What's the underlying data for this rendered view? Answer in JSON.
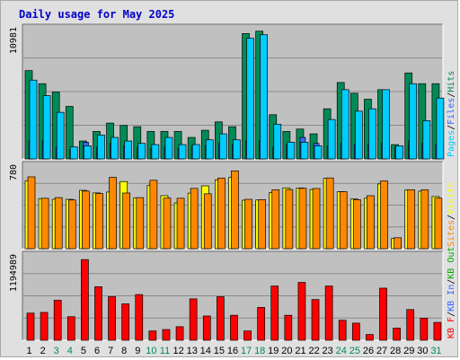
{
  "chart_data": {
    "type": "bar",
    "title": "Daily usage for May 2025",
    "days": [
      "1",
      "2",
      "3",
      "4",
      "5",
      "6",
      "7",
      "8",
      "9",
      "10",
      "11",
      "12",
      "13",
      "14",
      "15",
      "16",
      "17",
      "18",
      "19",
      "20",
      "21",
      "22",
      "23",
      "24",
      "25",
      "26",
      "27",
      "28",
      "29",
      "30",
      "31"
    ],
    "weekend_days": [
      "3",
      "4",
      "10",
      "11",
      "17",
      "18",
      "24",
      "25",
      "31"
    ],
    "panels": [
      {
        "id": "hits",
        "ymax_label": "10981",
        "ymax": 10981,
        "legend": [
          {
            "name": "Pages",
            "color": "#00ccff"
          },
          {
            "name": "Files",
            "color": "#3366ff"
          },
          {
            "name": "Hits",
            "color": "#008b56"
          }
        ],
        "series": [
          {
            "name": "Hits",
            "values": [
              7400,
              6300,
              5600,
              4400,
              1500,
              2300,
              3000,
              2800,
              2700,
              2300,
              2300,
              2300,
              1800,
              2400,
              3100,
              2700,
              10500,
              10700,
              3700,
              2300,
              2500,
              2100,
              4200,
              6400,
              5500,
              5000,
              5800,
              1200,
              7200,
              6300,
              6300
            ]
          },
          {
            "name": "Files",
            "values": [
              1500,
              1500,
              1000,
              800,
              1400,
              1000,
              1300,
              1100,
              1000,
              900,
              1000,
              900,
              1100,
              1100,
              1300,
              1200,
              1500,
              1500,
              1000,
              1200,
              1800,
              1300,
              1100,
              1300,
              1200,
              1200,
              1300,
              1000,
              1500,
              1300,
              1200
            ]
          },
          {
            "name": "Pages",
            "values": [
              6600,
              5300,
              3900,
              1000,
              1100,
              2000,
              1800,
              1500,
              1300,
              1200,
              1800,
              1200,
              1200,
              1600,
              2100,
              1600,
              10100,
              10400,
              2900,
              1400,
              1400,
              1100,
              3300,
              5800,
              4000,
              4200,
              5800,
              1100,
              6300,
              3200,
              5100
            ]
          }
        ]
      },
      {
        "id": "visits",
        "ymax_label": "780",
        "ymax": 780,
        "legend": [
          {
            "name": "Sites",
            "color": "#ff8800"
          },
          {
            "name": "Visits",
            "color": "#ffff00"
          }
        ],
        "series": [
          {
            "name": "Visits",
            "values": [
              635,
              468,
              461,
              461,
              545,
              521,
              529,
              627,
              474,
              590,
              495,
              427,
              519,
              587,
              643,
              665,
              453,
              455,
              525,
              567,
              567,
              553,
              657,
              533,
              464,
              471,
              605,
              95,
              548,
              537,
              487
            ]
          },
          {
            "name": "Sites",
            "values": [
              671,
              471,
              477,
              455,
              538,
              515,
              666,
              520,
              477,
              639,
              473,
              471,
              563,
              513,
              660,
              727,
              461,
              458,
              550,
              552,
              564,
              562,
              661,
              532,
              458,
              495,
              633,
              102,
              550,
              550,
              472
            ]
          }
        ]
      },
      {
        "id": "kbytes",
        "ymax_label": "1194989",
        "ymax": 1194989,
        "legend": [
          {
            "name": "KB F",
            "color": "#ff0000"
          },
          {
            "name": "KB In",
            "color": "#3366ff"
          },
          {
            "name": "KB Out",
            "color": "#00aa00"
          }
        ],
        "series": [
          {
            "name": "KB F",
            "values": [
              380000,
              390000,
              560000,
              330000,
              1130000,
              750000,
              610000,
              510000,
              640000,
              130000,
              150000,
              190000,
              580000,
              340000,
              610000,
              350000,
              130000,
              460000,
              760000,
              350000,
              810000,
              570000,
              760000,
              280000,
              240000,
              80000,
              730000,
              170000,
              430000,
              310000,
              250000
            ]
          }
        ]
      }
    ]
  }
}
